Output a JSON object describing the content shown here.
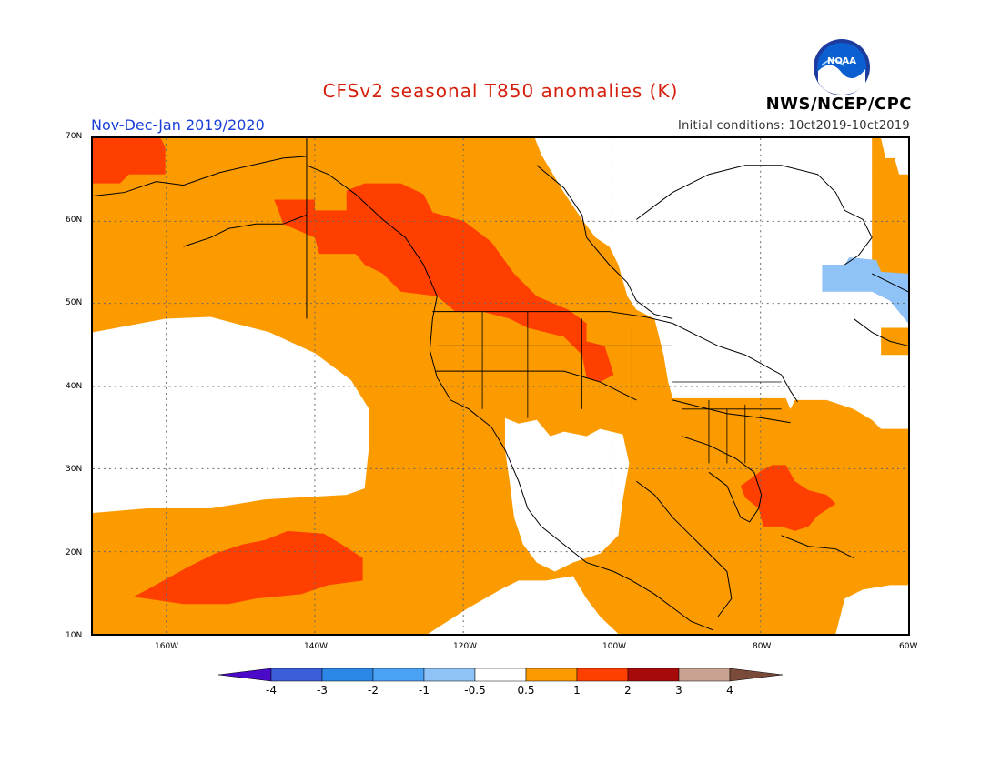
{
  "title": "CFSv2 seasonal T850 anomalies (K)",
  "period": "Nov-Dec-Jan 2019/2020",
  "initial_conditions": "Initial conditions: 10ct2019-10ct2019",
  "agency": "NWS/NCEP/CPC",
  "logo_text": "NOAA",
  "axes": {
    "lat_labels": [
      "70N",
      "60N",
      "50N",
      "40N",
      "30N",
      "20N",
      "10N"
    ],
    "lon_labels": [
      "160W",
      "140W",
      "120W",
      "100W",
      "80W",
      "60W"
    ]
  },
  "colorbar": {
    "labels": [
      "-4",
      "-3",
      "-2",
      "-1",
      "-0.5",
      "0.5",
      "1",
      "2",
      "3",
      "4"
    ],
    "colors": [
      "#4b0ac8",
      "#3a5fd8",
      "#2c87e6",
      "#4aa2f4",
      "#8fc2f6",
      "#ffffff",
      "#fb9b00",
      "#ff3f00",
      "#a70a0a",
      "#c9a291",
      "#7a4a3a"
    ]
  },
  "legend_meaning": {
    "white": "-0.5 to 0.5",
    "orange": "0.5 to 1",
    "red_orange": "1 to 2",
    "light_blue": "-1 to -0.5"
  }
}
